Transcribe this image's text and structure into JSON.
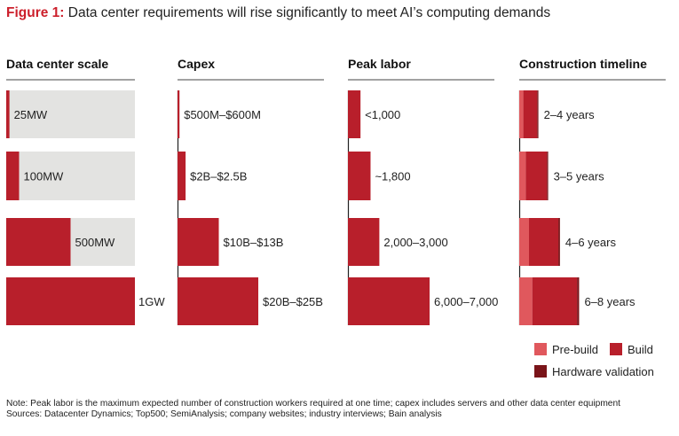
{
  "figure": {
    "label": "Figure 1:",
    "title": " Data center requirements will rise significantly to meet AI’s computing demands"
  },
  "colors": {
    "build": "#b81f2b",
    "prebuild": "#e0585d",
    "hardware": "#7a1419",
    "track": "#e3e3e1",
    "axis": "#222222"
  },
  "chart_data": {
    "type": "bar",
    "orientation": "horizontal",
    "rows": [
      "25MW",
      "100MW",
      "500MW",
      "1GW"
    ],
    "panels": [
      {
        "key": "scale",
        "title": "Data center scale",
        "values_mw": [
          25,
          100,
          500,
          1000
        ],
        "max": 1000,
        "labels": [
          "25MW",
          "100MW",
          "500MW",
          "1GW"
        ]
      },
      {
        "key": "capex",
        "title": "Capex",
        "values_busd": [
          0.55,
          2.25,
          11.5,
          22.5
        ],
        "max": 22.5,
        "labels": [
          "$500M–$600M",
          "$2B–$2.5B",
          "$10B–$13B",
          "$20B–$25B"
        ]
      },
      {
        "key": "labor",
        "title": "Peak labor",
        "values_workers": [
          1000,
          1800,
          2500,
          6500
        ],
        "max": 6500,
        "labels": [
          "<1,000",
          "~1,800",
          "2,000–3,000",
          "6,000–7,000"
        ]
      },
      {
        "key": "timeline",
        "title": "Construction timeline",
        "unit": "years",
        "max": 8.5,
        "series": [
          {
            "name": "Pre-build",
            "values": [
              0.5,
              0.8,
              1.2,
              1.6
            ]
          },
          {
            "name": "Build",
            "values": [
              1.7,
              2.6,
              3.6,
              5.5
            ]
          },
          {
            "name": "Hardware validation",
            "values": [
              0.15,
              0.15,
              0.2,
              0.25
            ]
          }
        ],
        "labels": [
          "2–4 years",
          "3–5 years",
          "4–6 years",
          "6–8 years"
        ]
      }
    ],
    "legend": {
      "items": [
        "Pre-build",
        "Build",
        "Hardware validation"
      ],
      "position": "bottom-right"
    }
  },
  "notes": {
    "note": "Note: Peak labor is the maximum expected number of construction workers required at one time; capex includes servers and other data center equipment",
    "sources": "Sources: Datacenter Dynamics; Top500; SemiAnalysis; company websites; industry interviews; Bain analysis"
  }
}
